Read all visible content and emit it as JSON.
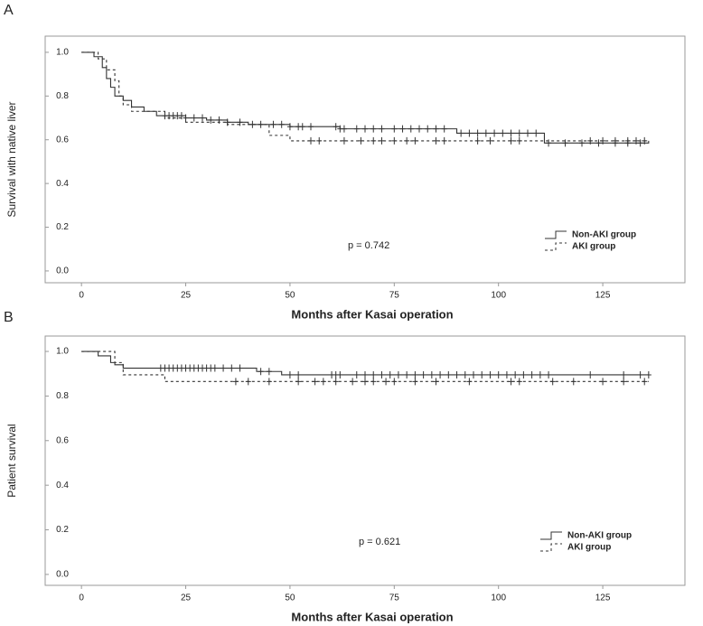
{
  "chart_data": [
    {
      "type": "step",
      "panel_label": "A",
      "xlabel": "Months after Kasai operation",
      "ylabel": "Survival with native liver",
      "annotation": "p = 0.742",
      "xlim": [
        -8.7,
        144.7
      ],
      "ylim": [
        -0.054,
        1.074
      ],
      "xticks": [
        0,
        25,
        50,
        75,
        100,
        125
      ],
      "yticks": [
        {
          "value": 0,
          "label": "0.0"
        },
        0.2,
        0.4,
        0.6,
        0.8,
        {
          "value": 1,
          "label": "1.0"
        }
      ],
      "grid": false,
      "legend": "lower right",
      "series": [
        {
          "name": "Non-AKI group",
          "color": "#333333",
          "linestyle": "solid",
          "x": [
            0,
            3,
            5,
            6,
            7,
            8,
            10,
            12,
            15,
            18,
            25,
            30,
            35,
            40,
            50,
            62,
            90,
            111,
            136
          ],
          "values": [
            1.0,
            0.98,
            0.93,
            0.88,
            0.84,
            0.8,
            0.78,
            0.75,
            0.73,
            0.71,
            0.7,
            0.69,
            0.68,
            0.67,
            0.66,
            0.65,
            0.63,
            0.585,
            0.595
          ],
          "censored": [
            20,
            21,
            22,
            23,
            24,
            25,
            27,
            29,
            31,
            33,
            35,
            38,
            41,
            43,
            46,
            48,
            50,
            52,
            53,
            55,
            61,
            62,
            63,
            66,
            68,
            70,
            72,
            75,
            77,
            79,
            81,
            83,
            85,
            87,
            91,
            93,
            95,
            97,
            99,
            101,
            103,
            105,
            107,
            109,
            112,
            116,
            120,
            124,
            128,
            131,
            134
          ]
        },
        {
          "name": "AKI group",
          "color": "#333333",
          "linestyle": "dashed",
          "x": [
            0,
            4,
            6,
            8,
            9,
            10,
            12,
            20,
            25,
            35,
            45,
            50,
            136
          ],
          "values": [
            1.0,
            0.97,
            0.92,
            0.87,
            0.8,
            0.76,
            0.73,
            0.7,
            0.68,
            0.67,
            0.62,
            0.595,
            0.595
          ],
          "censored": [
            55,
            57,
            63,
            67,
            70,
            72,
            75,
            78,
            80,
            85,
            87,
            95,
            98,
            103,
            105,
            122,
            125,
            128,
            131,
            133,
            135
          ]
        }
      ]
    },
    {
      "type": "step",
      "panel_label": "B",
      "xlabel": "Months after Kasai operation",
      "ylabel": "Patient survival",
      "annotation": "p = 0.621",
      "xlim": [
        -8.7,
        144.7
      ],
      "ylim": [
        -0.049,
        1.069
      ],
      "xticks": [
        0,
        25,
        50,
        75,
        100,
        125
      ],
      "yticks": [
        {
          "value": 0,
          "label": "0.0"
        },
        0.2,
        0.4,
        0.6,
        0.8,
        {
          "value": 1,
          "label": "1.0"
        }
      ],
      "grid": false,
      "legend": "lower right",
      "series": [
        {
          "name": "Non-AKI group",
          "color": "#333333",
          "linestyle": "solid",
          "x": [
            0,
            4,
            7,
            8,
            10,
            42,
            48,
            136
          ],
          "values": [
            1.0,
            0.98,
            0.95,
            0.94,
            0.925,
            0.91,
            0.895,
            0.895
          ],
          "censored": [
            19,
            20,
            21,
            22,
            23,
            24,
            25,
            26,
            27,
            28,
            29,
            30,
            31,
            32,
            34,
            36,
            38,
            43,
            45,
            50,
            52,
            60,
            61,
            62,
            66,
            68,
            70,
            72,
            74,
            76,
            78,
            80,
            82,
            84,
            86,
            88,
            90,
            92,
            94,
            96,
            98,
            100,
            102,
            104,
            106,
            108,
            110,
            112,
            122,
            130,
            134,
            136
          ]
        },
        {
          "name": "AKI group",
          "color": "#333333",
          "linestyle": "dashed",
          "x": [
            0,
            8,
            10,
            20,
            136
          ],
          "values": [
            1.0,
            0.95,
            0.895,
            0.865,
            0.865
          ],
          "censored": [
            37,
            40,
            45,
            52,
            56,
            58,
            61,
            65,
            68,
            70,
            73,
            75,
            80,
            85,
            93,
            103,
            105,
            113,
            118,
            125,
            130,
            135
          ]
        }
      ]
    }
  ]
}
